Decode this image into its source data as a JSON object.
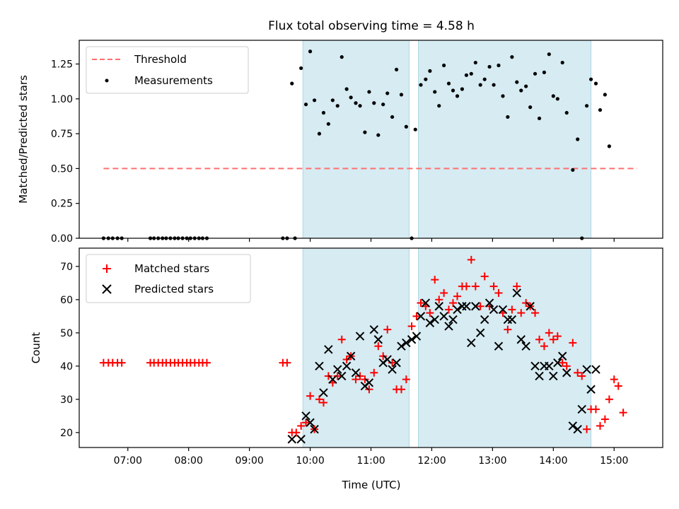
{
  "chart_data": [
    {
      "type": "scatter",
      "title": "Flux total observing time = 4.58 h",
      "xlabel": "",
      "ylabel": "Matched/Predicted stars",
      "ylim": [
        0,
        1.42
      ],
      "yticks": [
        "0.00",
        "0.25",
        "0.50",
        "0.75",
        "1.00",
        "1.25"
      ],
      "ytick_values": [
        0,
        0.25,
        0.5,
        0.75,
        1.0,
        1.25
      ],
      "xlim_hours": [
        6.2,
        15.8
      ],
      "legend_position": "top-left",
      "legend": [
        "Threshold",
        "Measurements"
      ],
      "shaded_intervals_hours": [
        [
          9.88,
          11.63
        ],
        [
          11.78,
          14.62
        ]
      ],
      "threshold": {
        "name": "Threshold",
        "y": 0.5,
        "x_start_hours": 6.6,
        "x_end_hours": 15.38,
        "color": "#ff7070"
      },
      "series": [
        {
          "name": "Measurements",
          "color": "#000000",
          "points_hours": [
            [
              6.6,
              0
            ],
            [
              6.68,
              0
            ],
            [
              6.75,
              0
            ],
            [
              6.83,
              0
            ],
            [
              6.9,
              0
            ],
            [
              7.37,
              0
            ],
            [
              7.43,
              0
            ],
            [
              7.5,
              0
            ],
            [
              7.57,
              0
            ],
            [
              7.63,
              0
            ],
            [
              7.7,
              0
            ],
            [
              7.77,
              0
            ],
            [
              7.83,
              0
            ],
            [
              7.9,
              0
            ],
            [
              7.97,
              0
            ],
            [
              8.03,
              0
            ],
            [
              8.1,
              0
            ],
            [
              8.17,
              0
            ],
            [
              8.23,
              0
            ],
            [
              8.3,
              0
            ],
            [
              9.55,
              0
            ],
            [
              9.62,
              0
            ],
            [
              9.7,
              1.11
            ],
            [
              9.75,
              0
            ],
            [
              9.85,
              1.22
            ],
            [
              9.93,
              0.96
            ],
            [
              10.0,
              1.34
            ],
            [
              10.07,
              0.99
            ],
            [
              10.15,
              0.75
            ],
            [
              10.22,
              0.9
            ],
            [
              10.3,
              0.82
            ],
            [
              10.37,
              0.99
            ],
            [
              10.45,
              0.95
            ],
            [
              10.52,
              1.3
            ],
            [
              10.6,
              1.07
            ],
            [
              10.67,
              1.01
            ],
            [
              10.75,
              0.97
            ],
            [
              10.82,
              0.95
            ],
            [
              10.9,
              0.76
            ],
            [
              10.97,
              1.05
            ],
            [
              11.05,
              0.97
            ],
            [
              11.12,
              0.74
            ],
            [
              11.2,
              0.96
            ],
            [
              11.27,
              1.04
            ],
            [
              11.35,
              0.87
            ],
            [
              11.42,
              1.21
            ],
            [
              11.5,
              1.03
            ],
            [
              11.58,
              0.8
            ],
            [
              11.67,
              0
            ],
            [
              11.73,
              0.78
            ],
            [
              11.82,
              1.1
            ],
            [
              11.9,
              1.14
            ],
            [
              11.97,
              1.2
            ],
            [
              12.05,
              1.05
            ],
            [
              12.12,
              0.95
            ],
            [
              12.2,
              1.24
            ],
            [
              12.28,
              1.11
            ],
            [
              12.35,
              1.06
            ],
            [
              12.42,
              1.02
            ],
            [
              12.5,
              1.07
            ],
            [
              12.57,
              1.17
            ],
            [
              12.65,
              1.18
            ],
            [
              12.72,
              1.26
            ],
            [
              12.8,
              1.1
            ],
            [
              12.87,
              1.14
            ],
            [
              12.95,
              1.23
            ],
            [
              13.02,
              1.1
            ],
            [
              13.1,
              1.24
            ],
            [
              13.17,
              1.02
            ],
            [
              13.25,
              0.87
            ],
            [
              13.32,
              1.3
            ],
            [
              13.4,
              1.12
            ],
            [
              13.47,
              1.06
            ],
            [
              13.55,
              1.09
            ],
            [
              13.62,
              0.94
            ],
            [
              13.7,
              1.18
            ],
            [
              13.77,
              0.86
            ],
            [
              13.85,
              1.19
            ],
            [
              13.93,
              1.32
            ],
            [
              14.0,
              1.02
            ],
            [
              14.07,
              1.0
            ],
            [
              14.15,
              1.26
            ],
            [
              14.22,
              0.9
            ],
            [
              14.32,
              0.49
            ],
            [
              14.4,
              0.71
            ],
            [
              14.47,
              0
            ],
            [
              14.55,
              0.95
            ],
            [
              14.62,
              1.14
            ],
            [
              14.7,
              1.11
            ],
            [
              14.77,
              0.92
            ],
            [
              14.85,
              1.03
            ],
            [
              14.92,
              0.66
            ]
          ]
        }
      ]
    },
    {
      "type": "scatter",
      "title": "",
      "xlabel": "Time (UTC)",
      "ylabel": "Count",
      "ylim": [
        15.5,
        75.5
      ],
      "yticks": [
        "20",
        "30",
        "40",
        "50",
        "60",
        "70"
      ],
      "ytick_values": [
        20,
        30,
        40,
        50,
        60,
        70
      ],
      "xlim_hours": [
        6.2,
        15.8
      ],
      "xtick_values_hours": [
        7,
        8,
        9,
        10,
        11,
        12,
        13,
        14,
        15
      ],
      "xticks": [
        "07:00",
        "08:00",
        "09:00",
        "10:00",
        "11:00",
        "12:00",
        "13:00",
        "14:00",
        "15:00"
      ],
      "legend_position": "top-left",
      "legend": [
        "Matched stars",
        "Predicted stars"
      ],
      "shaded_intervals_hours": [
        [
          9.88,
          11.63
        ],
        [
          11.78,
          14.62
        ]
      ],
      "series": [
        {
          "name": "Matched stars",
          "marker": "+",
          "color": "#ff0000",
          "points_hours": [
            [
              6.6,
              41
            ],
            [
              6.68,
              41
            ],
            [
              6.75,
              41
            ],
            [
              6.83,
              41
            ],
            [
              6.9,
              41
            ],
            [
              7.37,
              41
            ],
            [
              7.43,
              41
            ],
            [
              7.5,
              41
            ],
            [
              7.57,
              41
            ],
            [
              7.63,
              41
            ],
            [
              7.7,
              41
            ],
            [
              7.77,
              41
            ],
            [
              7.83,
              41
            ],
            [
              7.9,
              41
            ],
            [
              7.97,
              41
            ],
            [
              8.03,
              41
            ],
            [
              8.1,
              41
            ],
            [
              8.17,
              41
            ],
            [
              8.23,
              41
            ],
            [
              8.3,
              41
            ],
            [
              9.55,
              41
            ],
            [
              9.62,
              41
            ],
            [
              9.7,
              20
            ],
            [
              9.77,
              20
            ],
            [
              9.85,
              22
            ],
            [
              9.93,
              23
            ],
            [
              10.0,
              31
            ],
            [
              10.07,
              21
            ],
            [
              10.15,
              30
            ],
            [
              10.22,
              29
            ],
            [
              10.3,
              37
            ],
            [
              10.37,
              35
            ],
            [
              10.45,
              37
            ],
            [
              10.52,
              48
            ],
            [
              10.6,
              42
            ],
            [
              10.67,
              43
            ],
            [
              10.75,
              36
            ],
            [
              10.82,
              37
            ],
            [
              10.9,
              36
            ],
            [
              10.97,
              33
            ],
            [
              11.05,
              38
            ],
            [
              11.12,
              46
            ],
            [
              11.2,
              43
            ],
            [
              11.27,
              51
            ],
            [
              11.35,
              41
            ],
            [
              11.42,
              33
            ],
            [
              11.5,
              33
            ],
            [
              11.58,
              36
            ],
            [
              11.67,
              52
            ],
            [
              11.75,
              55
            ],
            [
              11.82,
              59
            ],
            [
              11.9,
              58
            ],
            [
              11.97,
              56
            ],
            [
              12.05,
              66
            ],
            [
              12.12,
              60
            ],
            [
              12.2,
              62
            ],
            [
              12.28,
              57
            ],
            [
              12.35,
              59
            ],
            [
              12.42,
              61
            ],
            [
              12.5,
              64
            ],
            [
              12.57,
              64
            ],
            [
              12.65,
              72
            ],
            [
              12.72,
              64
            ],
            [
              12.8,
              58
            ],
            [
              12.87,
              67
            ],
            [
              12.95,
              58
            ],
            [
              13.02,
              64
            ],
            [
              13.1,
              62
            ],
            [
              13.17,
              56
            ],
            [
              13.25,
              51
            ],
            [
              13.32,
              57
            ],
            [
              13.4,
              64
            ],
            [
              13.47,
              56
            ],
            [
              13.55,
              59
            ],
            [
              13.62,
              58
            ],
            [
              13.7,
              56
            ],
            [
              13.77,
              48
            ],
            [
              13.85,
              46
            ],
            [
              13.93,
              50
            ],
            [
              14.0,
              48
            ],
            [
              14.07,
              49
            ],
            [
              14.15,
              41
            ],
            [
              14.22,
              40
            ],
            [
              14.32,
              47
            ],
            [
              14.4,
              38
            ],
            [
              14.47,
              37
            ],
            [
              14.55,
              21
            ],
            [
              14.62,
              27
            ],
            [
              14.7,
              27
            ],
            [
              14.77,
              22
            ],
            [
              14.85,
              24
            ],
            [
              14.92,
              30
            ],
            [
              15.0,
              36
            ],
            [
              15.07,
              34
            ],
            [
              15.15,
              26
            ]
          ]
        },
        {
          "name": "Predicted stars",
          "marker": "x",
          "color": "#000000",
          "points_hours": [
            [
              9.7,
              18
            ],
            [
              9.85,
              18
            ],
            [
              9.93,
              25
            ],
            [
              10.0,
              23
            ],
            [
              10.07,
              21
            ],
            [
              10.15,
              40
            ],
            [
              10.22,
              32
            ],
            [
              10.3,
              45
            ],
            [
              10.37,
              36
            ],
            [
              10.45,
              39
            ],
            [
              10.52,
              37
            ],
            [
              10.6,
              40
            ],
            [
              10.67,
              43
            ],
            [
              10.75,
              38
            ],
            [
              10.82,
              49
            ],
            [
              10.9,
              34
            ],
            [
              10.97,
              35
            ],
            [
              11.05,
              51
            ],
            [
              11.12,
              48
            ],
            [
              11.2,
              41
            ],
            [
              11.27,
              42
            ],
            [
              11.35,
              39
            ],
            [
              11.42,
              41
            ],
            [
              11.5,
              46
            ],
            [
              11.58,
              47
            ],
            [
              11.67,
              48
            ],
            [
              11.75,
              49
            ],
            [
              11.82,
              55
            ],
            [
              11.9,
              59
            ],
            [
              11.97,
              53
            ],
            [
              12.05,
              54
            ],
            [
              12.12,
              58
            ],
            [
              12.2,
              55
            ],
            [
              12.28,
              52
            ],
            [
              12.35,
              54
            ],
            [
              12.42,
              57
            ],
            [
              12.5,
              58
            ],
            [
              12.57,
              58
            ],
            [
              12.65,
              47
            ],
            [
              12.72,
              58
            ],
            [
              12.8,
              50
            ],
            [
              12.87,
              54
            ],
            [
              12.95,
              59
            ],
            [
              13.02,
              57
            ],
            [
              13.1,
              46
            ],
            [
              13.17,
              57
            ],
            [
              13.25,
              54
            ],
            [
              13.32,
              54
            ],
            [
              13.4,
              62
            ],
            [
              13.47,
              48
            ],
            [
              13.55,
              46
            ],
            [
              13.62,
              58
            ],
            [
              13.7,
              40
            ],
            [
              13.77,
              37
            ],
            [
              13.85,
              40
            ],
            [
              13.93,
              40
            ],
            [
              14.0,
              37
            ],
            [
              14.07,
              41
            ],
            [
              14.15,
              43
            ],
            [
              14.22,
              38
            ],
            [
              14.32,
              22
            ],
            [
              14.4,
              21
            ],
            [
              14.47,
              27
            ],
            [
              14.55,
              39
            ],
            [
              14.62,
              33
            ],
            [
              14.7,
              39
            ]
          ]
        }
      ]
    }
  ],
  "style": {
    "shade_color": "#add8e6",
    "shade_opacity": 0.5,
    "threshold_color": "#ff7070",
    "matched_color": "#ff0000",
    "predicted_color": "#000000"
  }
}
